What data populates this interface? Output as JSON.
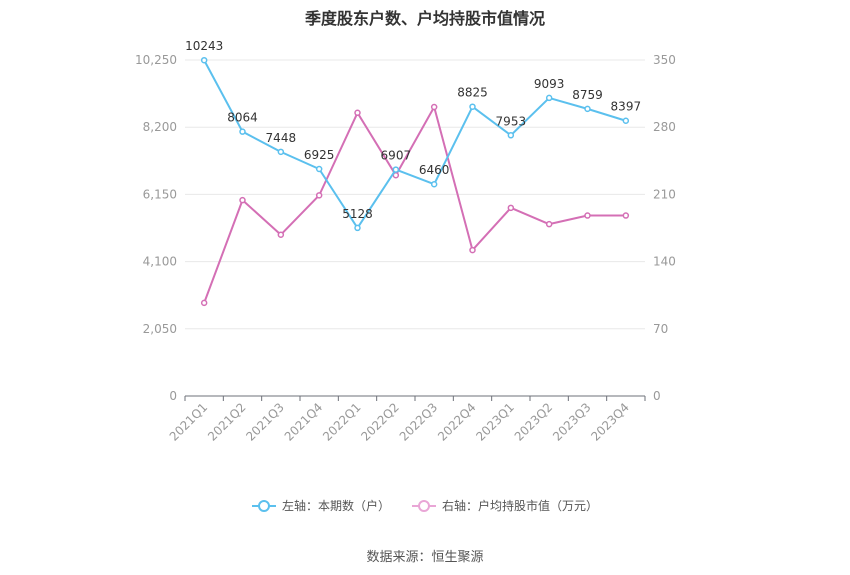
{
  "chart_data": {
    "type": "line",
    "title": "季度股东户数、户均持股市值情况",
    "categories": [
      "2021Q1",
      "2021Q2",
      "2021Q3",
      "2021Q4",
      "2022Q1",
      "2022Q2",
      "2022Q3",
      "2022Q4",
      "2023Q1",
      "2023Q2",
      "2023Q3",
      "2023Q4"
    ],
    "left_axis": {
      "ylim": [
        0,
        10250
      ],
      "ticks": [
        "0",
        "2,050",
        "4,100",
        "6,150",
        "8,200",
        "10,250"
      ]
    },
    "right_axis": {
      "ylim": [
        0,
        350
      ],
      "ticks": [
        "0",
        "70",
        "140",
        "210",
        "280",
        "350"
      ]
    },
    "series": [
      {
        "name": "左轴：本期数（户）",
        "axis": "left",
        "color": "#5bc0ee",
        "values": [
          10243,
          8064,
          7448,
          6925,
          5128,
          6907,
          6460,
          8825,
          7953,
          9093,
          8759,
          8397
        ],
        "data_labels": [
          "10243",
          "8064",
          "7448",
          "6925",
          "5128",
          "6907",
          "6460",
          "8825",
          "7953",
          "9093",
          "8759",
          "8397"
        ]
      },
      {
        "name": "右轴：户均持股市值（万元）",
        "axis": "right",
        "color": "#d46fb5",
        "values": [
          97,
          204,
          168,
          209,
          295,
          230,
          301,
          152,
          196,
          179,
          188,
          188
        ]
      }
    ],
    "grid": true,
    "legend_position": "bottom",
    "source": "数据来源：恒生聚源"
  }
}
